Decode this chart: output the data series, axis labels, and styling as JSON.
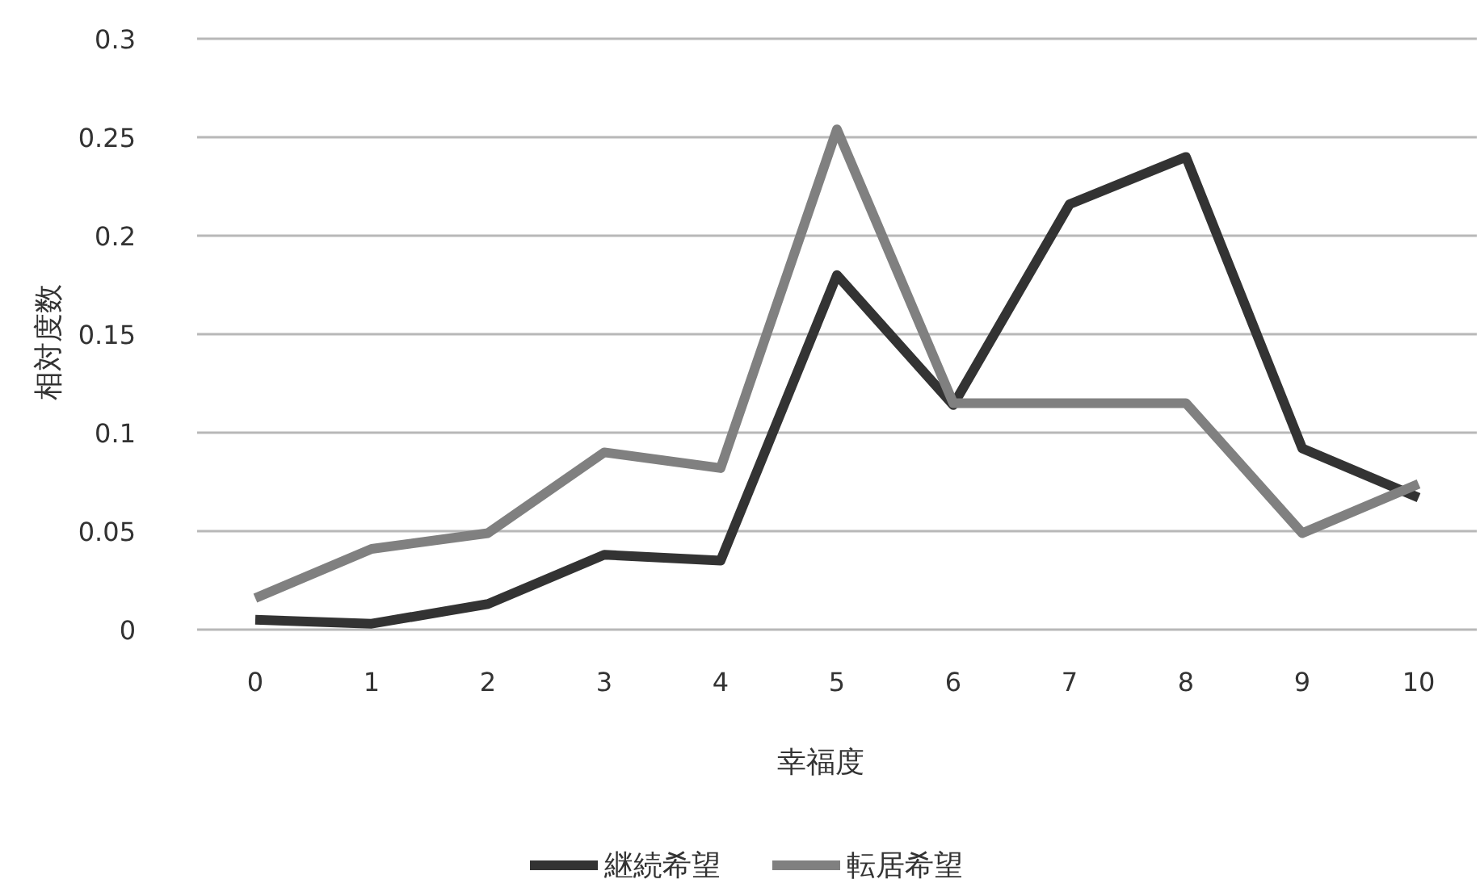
{
  "chart_data": {
    "type": "line",
    "xlabel": "幸福度",
    "ylabel": "相対度数",
    "categories": [
      "0",
      "1",
      "2",
      "3",
      "4",
      "5",
      "6",
      "7",
      "8",
      "9",
      "10"
    ],
    "series": [
      {
        "name": "継続希望",
        "color": "#333333",
        "values": [
          0.005,
          0.003,
          0.013,
          0.038,
          0.035,
          0.18,
          0.114,
          0.216,
          0.24,
          0.092,
          0.067
        ]
      },
      {
        "name": "転居希望",
        "color": "#808080",
        "values": [
          0.016,
          0.041,
          0.049,
          0.09,
          0.082,
          0.254,
          0.115,
          0.115,
          0.115,
          0.049,
          0.074
        ]
      }
    ],
    "ylim": [
      0,
      0.3
    ],
    "yticks": [
      0,
      0.05,
      0.1,
      0.15,
      0.2,
      0.25,
      0.3
    ],
    "grid": "y",
    "legend": "bottom",
    "marker": "none",
    "line_style": "solid"
  }
}
